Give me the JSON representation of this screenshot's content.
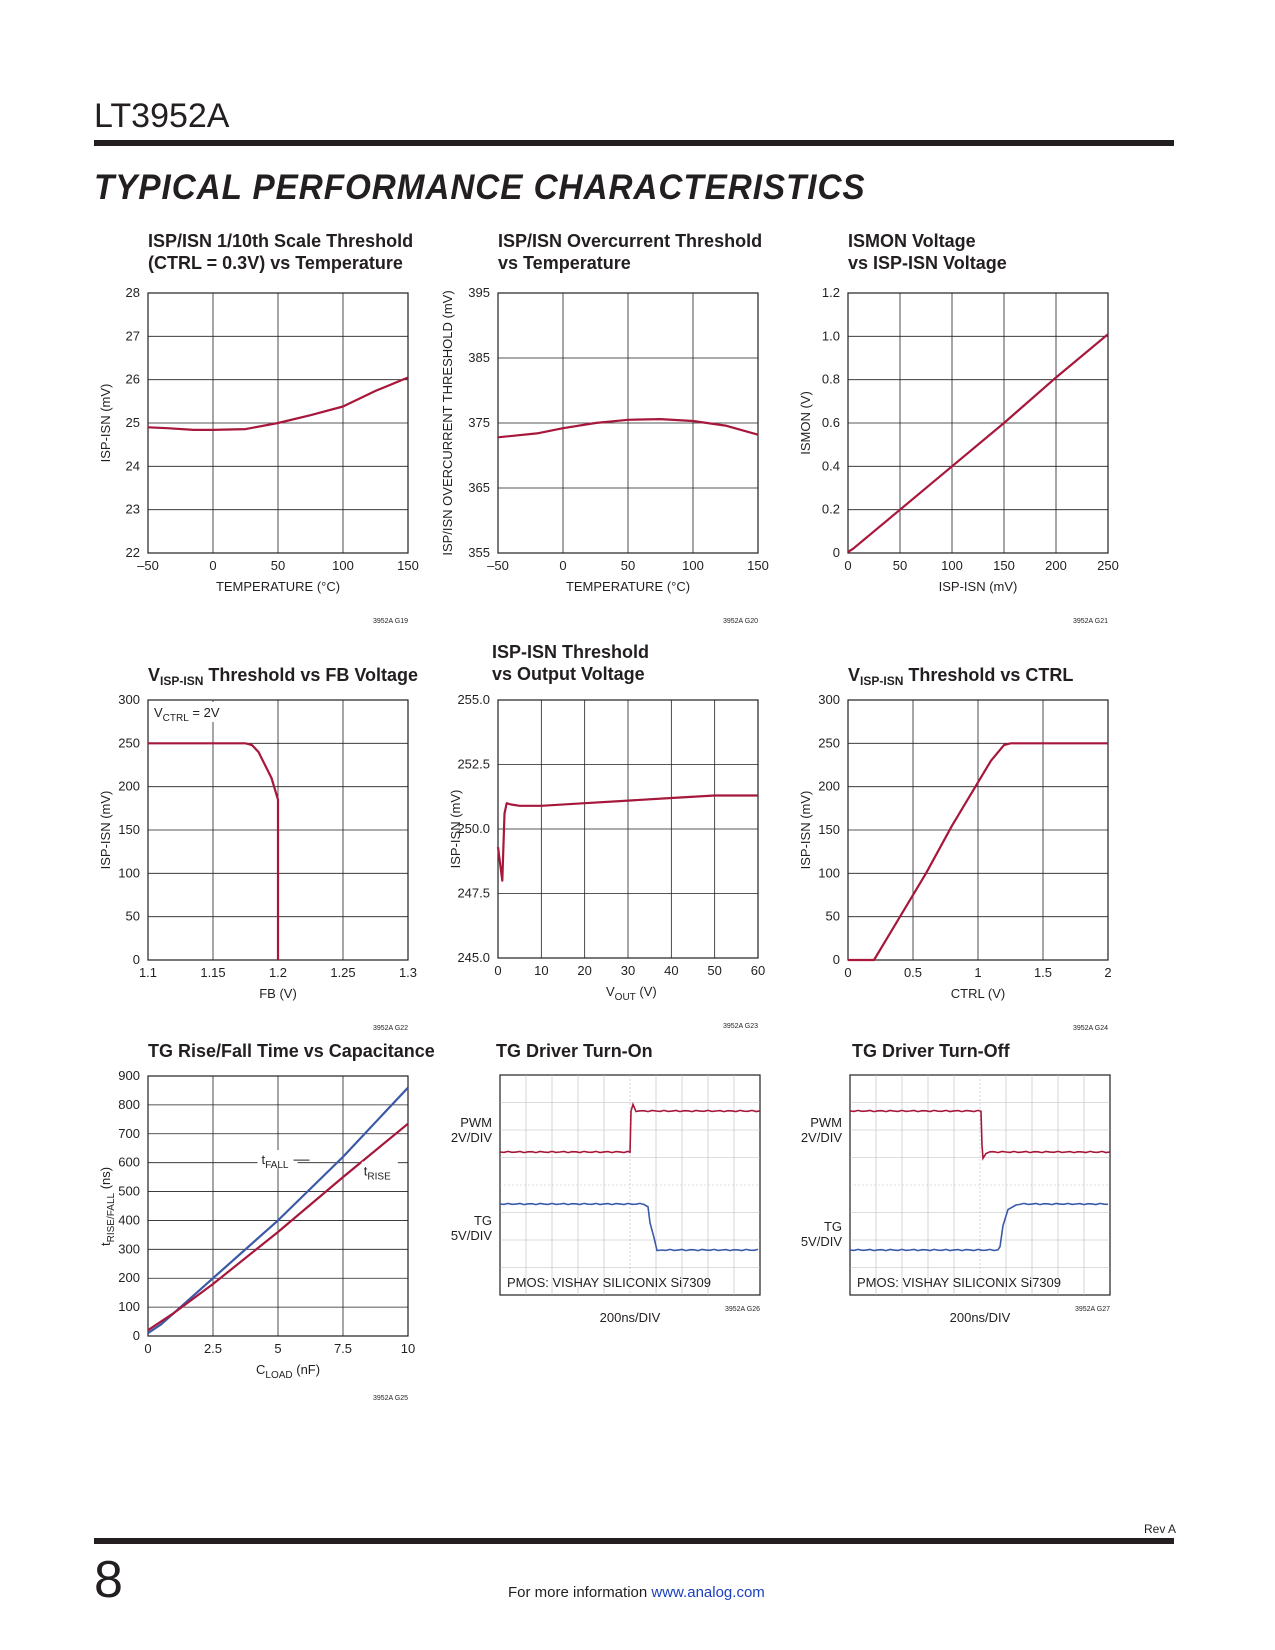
{
  "header": {
    "part": "LT3952A",
    "section": "TYPICAL PERFORMANCE CHARACTERISTICS"
  },
  "colors": {
    "trace_red": "#a6173b",
    "trace_blue": "#3a5aa8",
    "grid": "#231f20"
  },
  "chart_data": [
    {
      "id": "g19",
      "type": "line",
      "title": [
        "ISP/ISN  1/10th Scale Threshold",
        "(CTRL = 0.3V) vs Temperature"
      ],
      "xlabel": "TEMPERATURE (°C)",
      "ylabel": "ISP-ISN (mV)",
      "xlim": [
        -50,
        150
      ],
      "ylim": [
        22,
        28
      ],
      "xticks": [
        -50,
        0,
        50,
        100,
        150
      ],
      "xtick_labels": [
        "–50",
        "0",
        "50",
        "100",
        "150"
      ],
      "yticks": [
        22,
        23,
        24,
        25,
        26,
        27,
        28
      ],
      "ytick_labels": [
        "22",
        "23",
        "24",
        "25",
        "26",
        "27",
        "28"
      ],
      "code": "3952A G19",
      "series": [
        {
          "name": "threshold",
          "color": "red",
          "x": [
            -50,
            -35,
            -15,
            0,
            25,
            50,
            75,
            100,
            125,
            150
          ],
          "y": [
            24.9,
            24.88,
            24.84,
            24.84,
            24.86,
            25.0,
            25.18,
            25.38,
            25.74,
            26.05
          ]
        }
      ]
    },
    {
      "id": "g20",
      "type": "line",
      "title": [
        "ISP/ISN Overcurrent Threshold",
        "vs Temperature"
      ],
      "xlabel": "TEMPERATURE (°C)",
      "ylabel": "ISP/ISN OVERCURRENT THRESHOLD (mV)",
      "xlim": [
        -50,
        150
      ],
      "ylim": [
        355,
        395
      ],
      "xticks": [
        -50,
        0,
        50,
        100,
        150
      ],
      "xtick_labels": [
        "–50",
        "0",
        "50",
        "100",
        "150"
      ],
      "yticks": [
        355,
        365,
        375,
        385,
        395
      ],
      "ytick_labels": [
        "355",
        "365",
        "375",
        "385",
        "395"
      ],
      "code": "3952A G20",
      "series": [
        {
          "name": "overcurrent",
          "color": "red",
          "x": [
            -50,
            -20,
            0,
            25,
            50,
            75,
            100,
            125,
            150
          ],
          "y": [
            372.8,
            373.4,
            374.2,
            375.0,
            375.5,
            375.6,
            375.3,
            374.6,
            373.2
          ]
        }
      ]
    },
    {
      "id": "g21",
      "type": "line",
      "title": [
        "ISMON Voltage",
        "vs ISP-ISN Voltage"
      ],
      "xlabel": "ISP-ISN (mV)",
      "ylabel": "ISMON (V)",
      "xlim": [
        0,
        250
      ],
      "ylim": [
        0,
        1.2
      ],
      "xticks": [
        0,
        50,
        100,
        150,
        200,
        250
      ],
      "xtick_labels": [
        "0",
        "50",
        "100",
        "150",
        "200",
        "250"
      ],
      "yticks": [
        0,
        0.2,
        0.4,
        0.6,
        0.8,
        1.0,
        1.2
      ],
      "ytick_labels": [
        "0",
        "0.2",
        "0.4",
        "0.6",
        "0.8",
        "1.0",
        "1.2"
      ],
      "code": "3952A G21",
      "series": [
        {
          "name": "ismon",
          "color": "red",
          "x": [
            0,
            5,
            10,
            15,
            20,
            25,
            50,
            100,
            150,
            200,
            250
          ],
          "y": [
            0.005,
            0.02,
            0.04,
            0.06,
            0.08,
            0.1,
            0.2,
            0.4,
            0.6,
            0.81,
            1.01
          ]
        }
      ]
    },
    {
      "id": "g22",
      "type": "line",
      "title": [
        "V",
        "ISP-ISN",
        " Threshold vs FB Voltage"
      ],
      "xlabel": "FB (V)",
      "ylabel": "ISP-ISN (mV)",
      "xlim": [
        1.1,
        1.3
      ],
      "ylim": [
        0,
        300
      ],
      "xticks": [
        1.1,
        1.15,
        1.2,
        1.25,
        1.3
      ],
      "xtick_labels": [
        "1.1",
        "1.15",
        "1.2",
        "1.25",
        "1.3"
      ],
      "yticks": [
        0,
        50,
        100,
        150,
        200,
        250,
        300
      ],
      "ytick_labels": [
        "0",
        "50",
        "100",
        "150",
        "200",
        "250",
        "300"
      ],
      "annotation": [
        "V",
        "CTRL",
        " = 2V"
      ],
      "code": "3952A G22",
      "series": [
        {
          "name": "threshold",
          "color": "red",
          "x": [
            1.1,
            1.175,
            1.18,
            1.185,
            1.19,
            1.195,
            1.198,
            1.2,
            1.2,
            1.2
          ],
          "y": [
            250,
            250,
            248,
            240,
            225,
            210,
            195,
            185,
            100,
            0
          ]
        }
      ]
    },
    {
      "id": "g23",
      "type": "line",
      "title": [
        "ISP-ISN Threshold",
        "vs Output Voltage"
      ],
      "xlabel_parts": [
        "V",
        "OUT",
        " (V)"
      ],
      "ylabel": "ISP-ISN (mV)",
      "xlim": [
        0,
        60
      ],
      "ylim": [
        245,
        255
      ],
      "xticks": [
        0,
        10,
        20,
        30,
        40,
        50,
        60
      ],
      "xtick_labels": [
        "0",
        "10",
        "20",
        "30",
        "40",
        "50",
        "60"
      ],
      "yticks": [
        245,
        247.5,
        250,
        252.5,
        255
      ],
      "ytick_labels": [
        "245.0",
        "247.5",
        "250.0",
        "252.5",
        "255.0"
      ],
      "code": "3952A G23",
      "series": [
        {
          "name": "threshold",
          "color": "red",
          "x": [
            0,
            1,
            1.5,
            2,
            3,
            5,
            10,
            20,
            30,
            40,
            50,
            60
          ],
          "y": [
            249.3,
            248.0,
            250.6,
            251.0,
            250.95,
            250.9,
            250.9,
            251.0,
            251.1,
            251.2,
            251.3,
            251.3
          ]
        }
      ]
    },
    {
      "id": "g24",
      "type": "line",
      "title": [
        "V",
        "ISP-ISN",
        " Threshold vs CTRL"
      ],
      "xlabel": "CTRL (V)",
      "ylabel": "ISP-ISN (mV)",
      "xlim": [
        0,
        2
      ],
      "ylim": [
        0,
        300
      ],
      "xticks": [
        0,
        0.5,
        1,
        1.5,
        2
      ],
      "xtick_labels": [
        "0",
        "0.5",
        "1",
        "1.5",
        "2"
      ],
      "yticks": [
        0,
        50,
        100,
        150,
        200,
        250,
        300
      ],
      "ytick_labels": [
        "0",
        "50",
        "100",
        "150",
        "200",
        "250",
        "300"
      ],
      "code": "3952A G24",
      "series": [
        {
          "name": "threshold",
          "color": "red",
          "x": [
            0,
            0.2,
            0.4,
            0.6,
            0.8,
            1.0,
            1.1,
            1.2,
            1.25,
            2
          ],
          "y": [
            0,
            0,
            50,
            100,
            155,
            205,
            230,
            248,
            250,
            250
          ]
        }
      ]
    },
    {
      "id": "g25",
      "type": "line",
      "title": [
        "TG Rise/Fall Time vs Capacitance"
      ],
      "xlabel_parts": [
        "C",
        "LOAD",
        " (nF)"
      ],
      "ylabel_parts": [
        "t",
        "RISE/FALL",
        " (ns)"
      ],
      "xlim": [
        0,
        10
      ],
      "ylim": [
        0,
        900
      ],
      "xticks": [
        0,
        2.5,
        5,
        7.5,
        10
      ],
      "xtick_labels": [
        "0",
        "2.5",
        "5",
        "7.5",
        "10"
      ],
      "yticks": [
        0,
        100,
        200,
        300,
        400,
        500,
        600,
        700,
        800,
        900
      ],
      "ytick_labels": [
        "0",
        "100",
        "200",
        "300",
        "400",
        "500",
        "600",
        "700",
        "800",
        "900"
      ],
      "code": "3952A G25",
      "labels": {
        "fall": [
          "t",
          "FALL"
        ],
        "rise": [
          "t",
          "RISE"
        ]
      },
      "series": [
        {
          "name": "tFALL",
          "color": "blue",
          "x": [
            0,
            0.5,
            1,
            2.5,
            5,
            7.5,
            10
          ],
          "y": [
            10,
            40,
            80,
            200,
            400,
            620,
            860
          ]
        },
        {
          "name": "tRISE",
          "color": "red",
          "x": [
            0,
            0.5,
            1,
            2.5,
            5,
            7.5,
            10
          ],
          "y": [
            20,
            50,
            80,
            180,
            360,
            550,
            735
          ]
        }
      ]
    },
    {
      "id": "g26",
      "type": "scope",
      "title": [
        "TG Driver Turn-On"
      ],
      "ch1": [
        "PWM",
        "2V/DIV"
      ],
      "ch2": [
        "TG",
        "5V/DIV"
      ],
      "note": "PMOS: VISHAY SILICONIX Si7309",
      "xlabel": "200ns/DIV",
      "code": "3952A G26"
    },
    {
      "id": "g27",
      "type": "scope",
      "title": [
        "TG Driver Turn-Off"
      ],
      "ch1": [
        "PWM",
        "2V/DIV"
      ],
      "ch2": [
        "TG",
        "5V/DIV"
      ],
      "note": "PMOS: VISHAY SILICONIX Si7309",
      "xlabel": "200ns/DIV",
      "code": "3952A G27"
    }
  ],
  "footer": {
    "rev": "Rev A",
    "page": "8",
    "text": "For more information ",
    "link": "www.analog.com"
  }
}
